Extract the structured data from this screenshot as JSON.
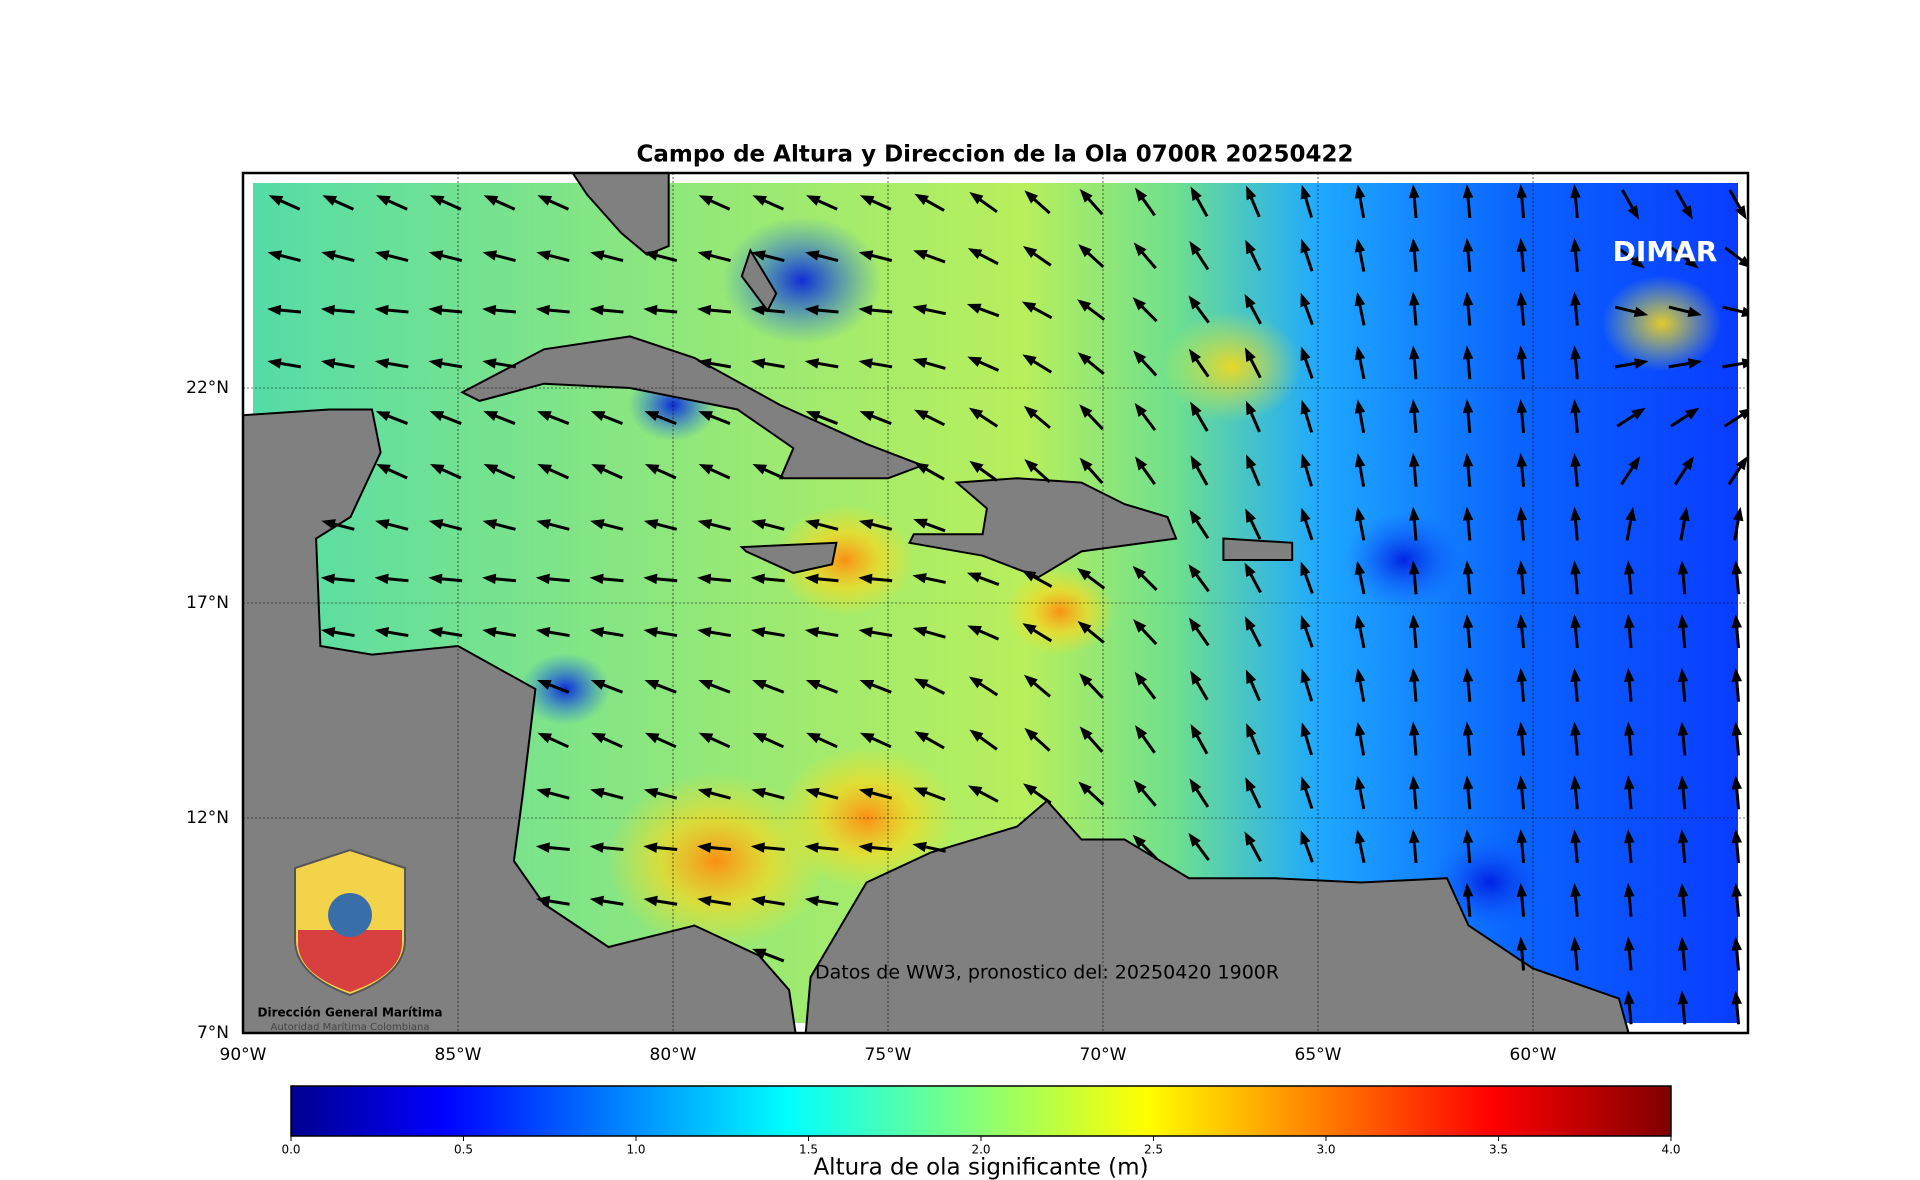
{
  "map": {
    "title": "Campo de Altura y Direccion de la Ola 0700R 20250422",
    "xlim": [
      -90,
      -55
    ],
    "ylim": [
      7,
      27
    ],
    "lon_ticks": [
      {
        "value": -90,
        "label": "90°W"
      },
      {
        "value": -85,
        "label": "85°W"
      },
      {
        "value": -80,
        "label": "80°W"
      },
      {
        "value": -75,
        "label": "75°W"
      },
      {
        "value": -70,
        "label": "70°W"
      },
      {
        "value": -65,
        "label": "65°W"
      },
      {
        "value": -60,
        "label": "60°W"
      }
    ],
    "lat_ticks": [
      {
        "value": 7,
        "label": "7°N"
      },
      {
        "value": 12,
        "label": "12°N"
      },
      {
        "value": 17,
        "label": "17°N"
      },
      {
        "value": 22,
        "label": "22°N"
      }
    ],
    "watermark": "DIMAR",
    "annotation": "Datos de WW3, pronostico del: 20250420 1900R",
    "logo": {
      "line1": "Dirección General Marítima",
      "line2": "Autoridad Marítima Colombiana"
    },
    "colorbar": {
      "label": "Altura de ola significante (m)",
      "lim": [
        0,
        4
      ],
      "ticks": [
        {
          "value": 0,
          "label": "0.0"
        },
        {
          "value": 0.5,
          "label": "0.5"
        },
        {
          "value": 1,
          "label": "1.0"
        },
        {
          "value": 1.5,
          "label": "1.5"
        },
        {
          "value": 2,
          "label": "2.0"
        },
        {
          "value": 2.5,
          "label": "2.5"
        },
        {
          "value": 3,
          "label": "3.0"
        },
        {
          "value": 3.5,
          "label": "3.5"
        },
        {
          "value": 4,
          "label": "4.0"
        }
      ]
    }
  }
}
